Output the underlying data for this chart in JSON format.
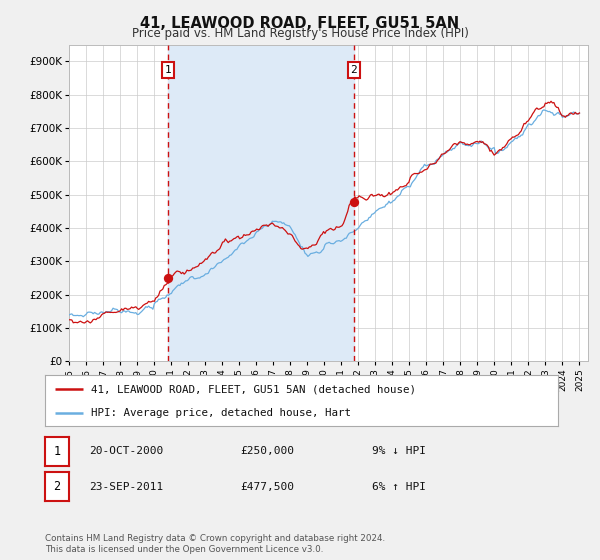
{
  "title": "41, LEAWOOD ROAD, FLEET, GU51 5AN",
  "subtitle": "Price paid vs. HM Land Registry's House Price Index (HPI)",
  "xlim": [
    1995.0,
    2025.5
  ],
  "ylim": [
    0,
    950000
  ],
  "yticks": [
    0,
    100000,
    200000,
    300000,
    400000,
    500000,
    600000,
    700000,
    800000,
    900000
  ],
  "ytick_labels": [
    "£0",
    "£100K",
    "£200K",
    "£300K",
    "£400K",
    "£500K",
    "£600K",
    "£700K",
    "£800K",
    "£900K"
  ],
  "xlabel_years": [
    1995,
    1996,
    1997,
    1998,
    1999,
    2000,
    2001,
    2002,
    2003,
    2004,
    2005,
    2006,
    2007,
    2008,
    2009,
    2010,
    2011,
    2012,
    2013,
    2014,
    2015,
    2016,
    2017,
    2018,
    2019,
    2020,
    2021,
    2022,
    2023,
    2024,
    2025
  ],
  "vline1_x": 2000.8,
  "vline2_x": 2011.73,
  "sale1_marker_x": 2000.8,
  "sale1_marker_y": 250000,
  "sale2_marker_x": 2011.73,
  "sale2_marker_y": 477500,
  "shade_color": "#ddeaf7",
  "hpi_color": "#6aaee0",
  "price_color": "#cc1111",
  "vline_color": "#cc1111",
  "marker_color": "#cc1111",
  "legend_line1": "41, LEAWOOD ROAD, FLEET, GU51 5AN (detached house)",
  "legend_line2": "HPI: Average price, detached house, Hart",
  "table_row1_num": "1",
  "table_row1_date": "20-OCT-2000",
  "table_row1_price": "£250,000",
  "table_row1_hpi": "9% ↓ HPI",
  "table_row2_num": "2",
  "table_row2_date": "23-SEP-2011",
  "table_row2_price": "£477,500",
  "table_row2_hpi": "6% ↑ HPI",
  "footer": "Contains HM Land Registry data © Crown copyright and database right 2024.\nThis data is licensed under the Open Government Licence v3.0.",
  "background_color": "#f0f0f0",
  "plot_background": "#ffffff",
  "grid_color": "#cccccc",
  "legend_bg": "#ffffff",
  "legend_border": "#aaaaaa"
}
